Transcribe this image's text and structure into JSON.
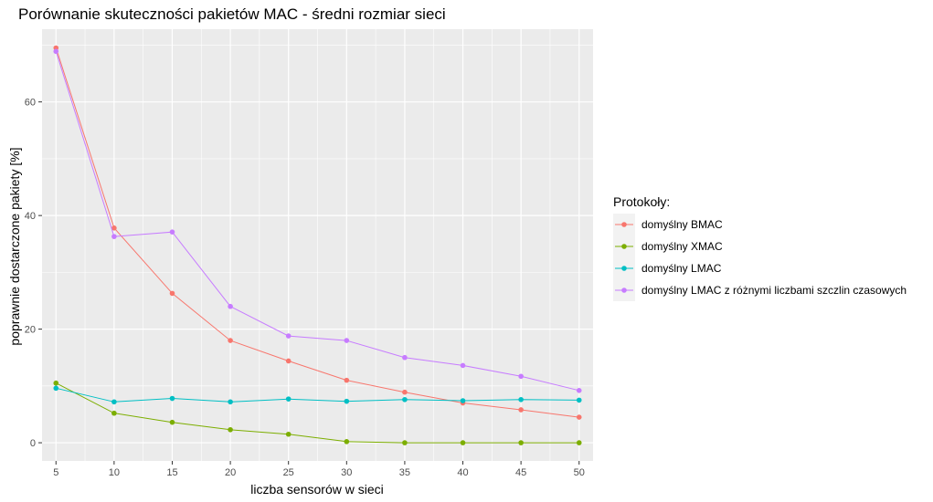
{
  "chart_data": {
    "type": "line",
    "title": "Porównanie skuteczności pakietów MAC - średni rozmiar sieci",
    "xlabel": "liczba sensorów w sieci",
    "ylabel": "poprawnie dostarczone pakiety [%]",
    "x": [
      5,
      10,
      15,
      20,
      25,
      30,
      35,
      40,
      45,
      50
    ],
    "x_ticks": [
      "5",
      "10",
      "15",
      "20",
      "25",
      "30",
      "35",
      "40",
      "45",
      "50"
    ],
    "y_ticks": [
      "0",
      "20",
      "40",
      "60"
    ],
    "xlim": [
      3.8,
      51.2
    ],
    "ylim": [
      -3.2,
      72.8
    ],
    "grid": true,
    "legend": {
      "title": "Protokoły:",
      "position": "right"
    },
    "series": [
      {
        "name": "domyślny BMAC",
        "color": "#F8766D",
        "values": [
          69.5,
          37.8,
          26.3,
          18.0,
          14.4,
          11.0,
          8.9,
          7.0,
          5.8,
          4.5
        ]
      },
      {
        "name": "domyślny XMAC",
        "color": "#7CAE00",
        "values": [
          10.5,
          5.2,
          3.6,
          2.3,
          1.5,
          0.2,
          0.0,
          0.0,
          0.0,
          0.0
        ]
      },
      {
        "name": "domyślny LMAC",
        "color": "#00BFC4",
        "values": [
          9.6,
          7.2,
          7.8,
          7.2,
          7.7,
          7.3,
          7.6,
          7.4,
          7.6,
          7.5
        ]
      },
      {
        "name": "domyślny LMAC z różnymi liczbami szczlin czasowych",
        "color": "#C77CFF",
        "values": [
          68.9,
          36.3,
          37.1,
          24.0,
          18.8,
          18.0,
          15.0,
          13.6,
          11.7,
          9.2
        ]
      }
    ]
  }
}
